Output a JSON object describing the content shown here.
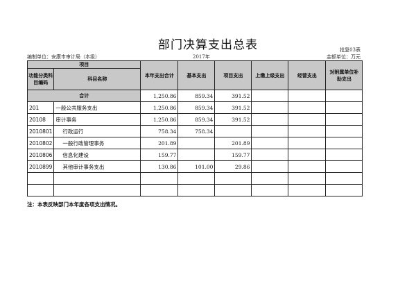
{
  "title": "部门决算支出总表",
  "form_no": "批复03表",
  "unit": "编制单位：安康市审计局（本级）",
  "year": "2017年",
  "amount_unit": "金额单位：万元",
  "headers": {
    "project": "项目",
    "code": "功能分类科目编码",
    "name": "科目名称",
    "total": "本年支出合计",
    "basic": "基本支出",
    "project_exp": "项目支出",
    "upper": "上缴上级支出",
    "business": "经营支出",
    "subsidy": "对附属单位补助支出"
  },
  "total_row": {
    "label": "合计",
    "total": "1,250.86",
    "basic": "859.34",
    "project_exp": "391.52"
  },
  "rows": [
    {
      "code": "201",
      "name": "一般公共服务支出",
      "indent": false,
      "total": "1,250.86",
      "basic": "859.34",
      "project_exp": "391.52"
    },
    {
      "code": "20108",
      "name": "审计事务",
      "indent": false,
      "total": "1,250.86",
      "basic": "859.34",
      "project_exp": "391.52"
    },
    {
      "code": "2010801",
      "name": "行政运行",
      "indent": true,
      "total": "758.34",
      "basic": "758.34",
      "project_exp": ""
    },
    {
      "code": "2010802",
      "name": "一般行政管理事务",
      "indent": true,
      "total": "201.89",
      "basic": "",
      "project_exp": "201.89"
    },
    {
      "code": "2010806",
      "name": "信息化建设",
      "indent": true,
      "total": "159.77",
      "basic": "",
      "project_exp": "159.77"
    },
    {
      "code": "2010899",
      "name": "其他审计事务支出",
      "indent": true,
      "total": "130.86",
      "basic": "101.00",
      "project_exp": "29.86"
    },
    {
      "code": "",
      "name": "",
      "indent": false,
      "total": "",
      "basic": "",
      "project_exp": ""
    },
    {
      "code": "",
      "name": "",
      "indent": false,
      "total": "",
      "basic": "",
      "project_exp": ""
    }
  ],
  "note": "注：本表反映部门本年度各项支出情况。"
}
